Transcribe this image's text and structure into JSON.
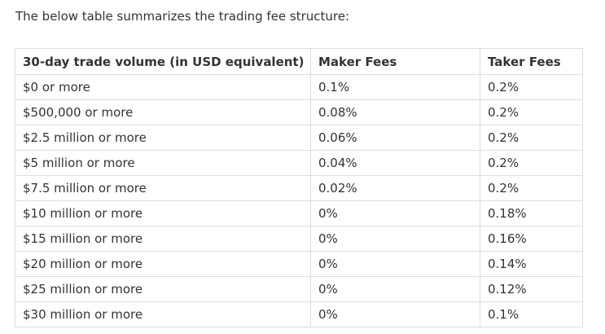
{
  "intro": "The below table summarizes the trading fee structure:",
  "table": {
    "headers": [
      "30-day trade volume (in USD equivalent)",
      "Maker Fees",
      "Taker Fees"
    ],
    "rows": [
      [
        "$0 or more",
        "0.1%",
        "0.2%"
      ],
      [
        "$500,000 or more",
        "0.08%",
        "0.2%"
      ],
      [
        "$2.5 million or more",
        "0.06%",
        "0.2%"
      ],
      [
        "$5 million or more",
        "0.04%",
        "0.2%"
      ],
      [
        "$7.5 million or more",
        "0.02%",
        "0.2%"
      ],
      [
        "$10 million or more",
        "0%",
        "0.18%"
      ],
      [
        "$15 million or more",
        "0%",
        "0.16%"
      ],
      [
        "$20 million or more",
        "0%",
        "0.14%"
      ],
      [
        "$25 million or more",
        "0%",
        "0.12%"
      ],
      [
        "$30 million or more",
        "0%",
        "0.1%"
      ]
    ]
  },
  "colors": {
    "text": "#333333",
    "border": "#dddddd",
    "background": "#ffffff"
  }
}
